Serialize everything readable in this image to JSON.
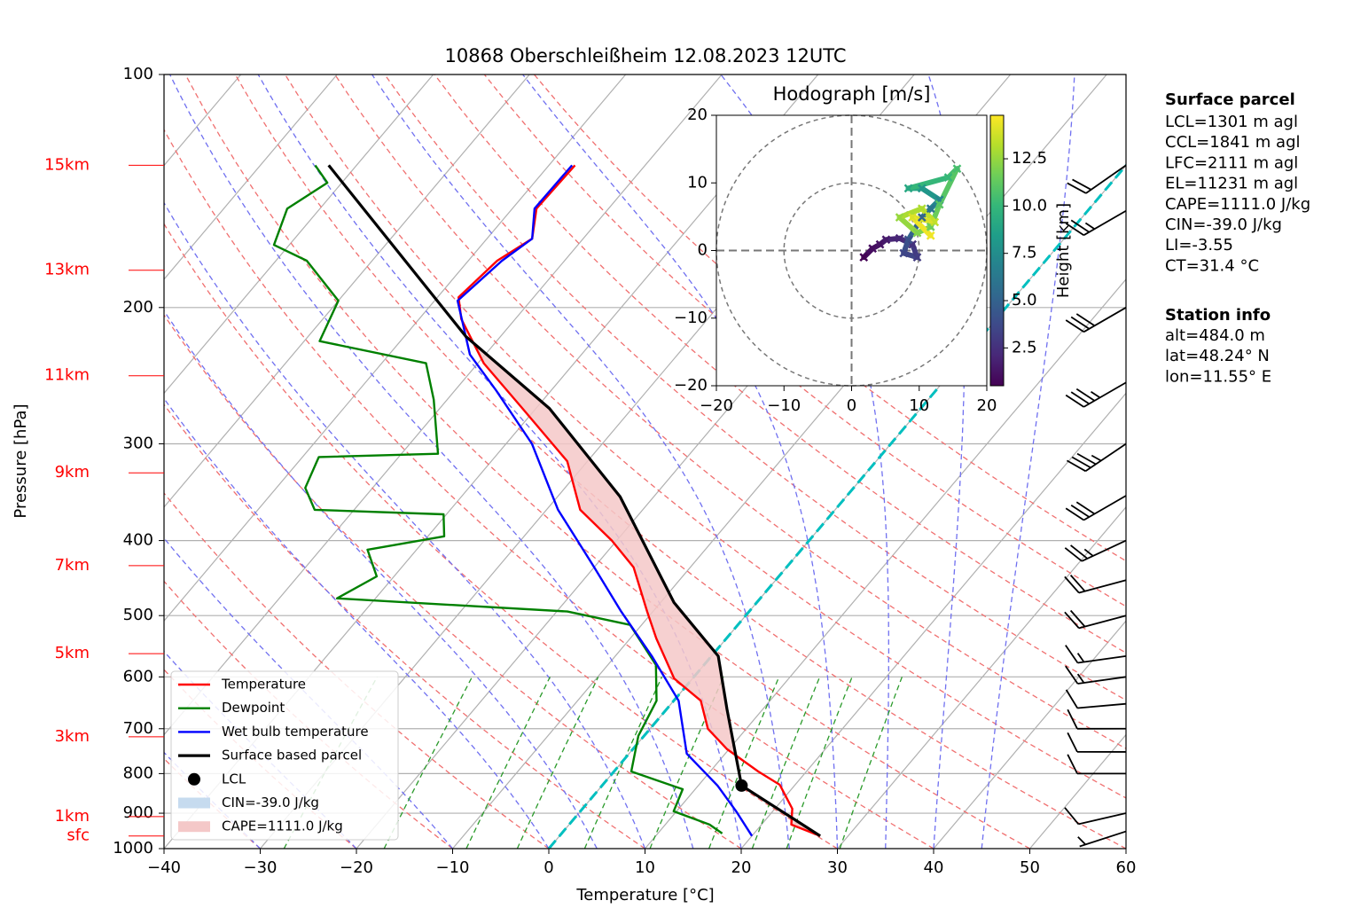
{
  "chart_data": [
    {
      "type": "skewt",
      "title": "10868 Oberschleißheim 12.08.2023 12UTC",
      "xlabel": "Temperature [°C]",
      "ylabel": "Pressure [hPa]",
      "xlim": [
        -40,
        60
      ],
      "ylim": [
        1000,
        100
      ],
      "log_y": true,
      "grid": true,
      "legend": "lower left",
      "xticks": [
        {
          "value": -40,
          "label": "−40"
        },
        {
          "value": -30,
          "label": "−30"
        },
        {
          "value": -20,
          "label": "−20"
        },
        {
          "value": -10,
          "label": "−10"
        },
        0,
        10,
        20,
        30,
        40,
        50,
        60
      ],
      "yticks": [
        100,
        200,
        300,
        400,
        500,
        600,
        700,
        800,
        900,
        1000
      ],
      "isotherms": {
        "color": "#b0b0b0",
        "values": [
          -100,
          -90,
          -80,
          -70,
          -60,
          -50,
          -40,
          -30,
          -20,
          -10,
          0,
          10,
          20,
          30,
          40,
          50,
          60
        ]
      },
      "dry_adiabats": {
        "color": "#f07070",
        "values": [
          -30,
          -20,
          -10,
          0,
          10,
          20,
          30,
          40,
          50,
          60,
          70,
          80,
          90,
          100,
          110,
          120
        ]
      },
      "moist_adiabats": {
        "color": "#7070f0",
        "values": [
          -30,
          -20,
          -10,
          0,
          5,
          10,
          15,
          20,
          25,
          30,
          35,
          40,
          45
        ]
      },
      "mixing_ratios": {
        "color": "#2a9a2a",
        "values": [
          0.4,
          1,
          2,
          3,
          5,
          8,
          12,
          16,
          20,
          28
        ],
        "top": 600
      },
      "zero_isotherm": {
        "value": 0,
        "color": "#00bfbf"
      },
      "height_ticks": [
        {
          "value": 131,
          "label": "15km"
        },
        {
          "value": 179,
          "label": "13km"
        },
        {
          "value": 245,
          "label": "11km"
        },
        {
          "value": 327,
          "label": "9km"
        },
        {
          "value": 431,
          "label": "7km"
        },
        {
          "value": 560,
          "label": "5km"
        },
        {
          "value": 717,
          "label": "3km"
        },
        {
          "value": 909,
          "label": "1km"
        },
        {
          "value": 963,
          "label": "sfc"
        }
      ],
      "series": [
        {
          "name": "Temperature",
          "color": "#ff0000",
          "pressure": [
            963,
            931,
            888,
            827,
            795,
            744,
            700,
            644,
            603,
            535,
            494,
            433,
            400,
            365,
            316,
            270,
            236,
            207,
            194,
            174,
            163,
            149,
            131
          ],
          "values": [
            27.1,
            23.1,
            21.8,
            18.4,
            15.0,
            9.8,
            6.0,
            2.8,
            -1.9,
            -7.3,
            -10.6,
            -15.9,
            -20.5,
            -26.5,
            -32.1,
            -41.4,
            -49.4,
            -55.6,
            -57.8,
            -57.0,
            -55.3,
            -57.5,
            -57.3
          ]
        },
        {
          "name": "Dewpoint",
          "color": "#008000",
          "pressure": [
            956,
            931,
            895,
            838,
            795,
            715,
            644,
            579,
            514,
            494,
            475,
            445,
            411,
            395,
            370,
            365,
            342,
            312,
            309,
            263,
            236,
            221,
            196,
            174,
            166,
            149,
            138,
            131
          ],
          "values": [
            16.7,
            14.6,
            9.7,
            8.7,
            1.8,
            -0.6,
            -1.8,
            -5.0,
            -11.2,
            -18.9,
            -44.0,
            -41.8,
            -45.1,
            -38.3,
            -40.3,
            -54.1,
            -57.0,
            -58.3,
            -46.2,
            -51.4,
            -55.4,
            -68.4,
            -70.0,
            -76.8,
            -81.6,
            -83.4,
            -81.5,
            -84.3
          ]
        },
        {
          "name": "Wet bulb temperature",
          "color": "#0000ff",
          "pressure": [
            963,
            895,
            829,
            754,
            644,
            564,
            494,
            433,
            365,
            300,
            256,
            230,
            196,
            174,
            163,
            149,
            131
          ],
          "values": [
            20.0,
            16.2,
            12.0,
            6.0,
            0.5,
            -6.2,
            -13.3,
            -20.0,
            -28.8,
            -37.3,
            -45.7,
            -51.6,
            -57.6,
            -56.5,
            -55.3,
            -57.7,
            -57.6
          ]
        },
        {
          "name": "Surface based parcel",
          "color": "#000000",
          "pressure": [
            963,
            829,
            661,
            564,
            481,
            351,
            270,
            218,
            131
          ],
          "values": [
            27.1,
            14.5,
            6.3,
            0.7,
            -8.6,
            -23.5,
            -38.6,
            -53.6,
            -82.9
          ]
        }
      ],
      "lcl": {
        "name": "LCL",
        "pressure": 829,
        "value": 14.5,
        "color": "#000000"
      },
      "cin": {
        "name": "CIN=-39.0 J/kg",
        "color": "#c6dbef"
      },
      "cape": {
        "name": "CAPE=1111.0 J/kg",
        "color": "#f4c8c8"
      },
      "wind": {
        "pressure": [
          131,
          150,
          200,
          250,
          300,
          350,
          400,
          450,
          500,
          564,
          600,
          650,
          700,
          750,
          800,
          900,
          950
        ],
        "direction": [
          235,
          240,
          240,
          240,
          236,
          240,
          245,
          255,
          255,
          262,
          262,
          265,
          270,
          270,
          270,
          257,
          252
        ],
        "speed": [
          20,
          25,
          30,
          35,
          35,
          30,
          25,
          20,
          20,
          15,
          15,
          10,
          10,
          10,
          10,
          10,
          5
        ]
      }
    },
    {
      "type": "hodograph",
      "title": "Hodograph [m/s]",
      "xlim": [
        -20,
        20
      ],
      "ylim": [
        -20,
        20
      ],
      "xticks": [
        {
          "value": -20,
          "label": "−20"
        },
        {
          "value": -10,
          "label": "−10"
        },
        0,
        10,
        20
      ],
      "yticks": [
        {
          "value": -20,
          "label": "−20"
        },
        {
          "value": -10,
          "label": "−10"
        },
        0,
        10,
        20
      ],
      "rings": [
        10,
        20
      ],
      "u": [
        1.8,
        3.1,
        4.2,
        5.1,
        7.1,
        9.0,
        9.7,
        7.7,
        8.4,
        10.4,
        11.7,
        13.0,
        10.4,
        8.4,
        14.3,
        15.6,
        13.0,
        11.7,
        9.7,
        7.1,
        10.4,
        12.3,
        9.0,
        11.7
      ],
      "v": [
        -1.0,
        0.3,
        0.9,
        1.6,
        1.8,
        0.9,
        -1.0,
        -0.4,
        1.6,
        4.9,
        6.2,
        7.5,
        9.2,
        9.2,
        10.8,
        12.1,
        6.8,
        3.5,
        2.6,
        4.9,
        6.2,
        4.2,
        4.9,
        2.2
      ],
      "height": [
        0.5,
        1.0,
        1.2,
        1.5,
        2.0,
        2.5,
        3.0,
        3.5,
        4.0,
        5.0,
        6.0,
        7.0,
        8.0,
        9.0,
        10.0,
        10.5,
        11.0,
        11.5,
        12.0,
        12.5,
        13.0,
        13.5,
        14.0,
        14.5
      ],
      "colorbar": {
        "label": "Height [km]",
        "lim": [
          0.5,
          14.8
        ],
        "ticks": [
          2.5,
          {
            "value": 5,
            "label": "5.0"
          },
          7.5,
          {
            "value": 10,
            "label": "10.0"
          },
          12.5
        ]
      }
    }
  ],
  "info": {
    "surface_parcel": {
      "title": "Surface parcel",
      "lines": [
        "LCL=1301 m agl",
        "CCL=1841 m agl",
        "LFC=2111 m agl",
        "EL=11231 m agl",
        "CAPE=1111.0 J/kg",
        "CIN=-39.0 J/kg",
        "LI=-3.55",
        "CT=31.4 °C"
      ]
    },
    "station": {
      "title": "Station info",
      "lines": [
        "alt=484.0 m",
        "lat=48.24° N",
        "lon=11.55° E"
      ]
    }
  }
}
